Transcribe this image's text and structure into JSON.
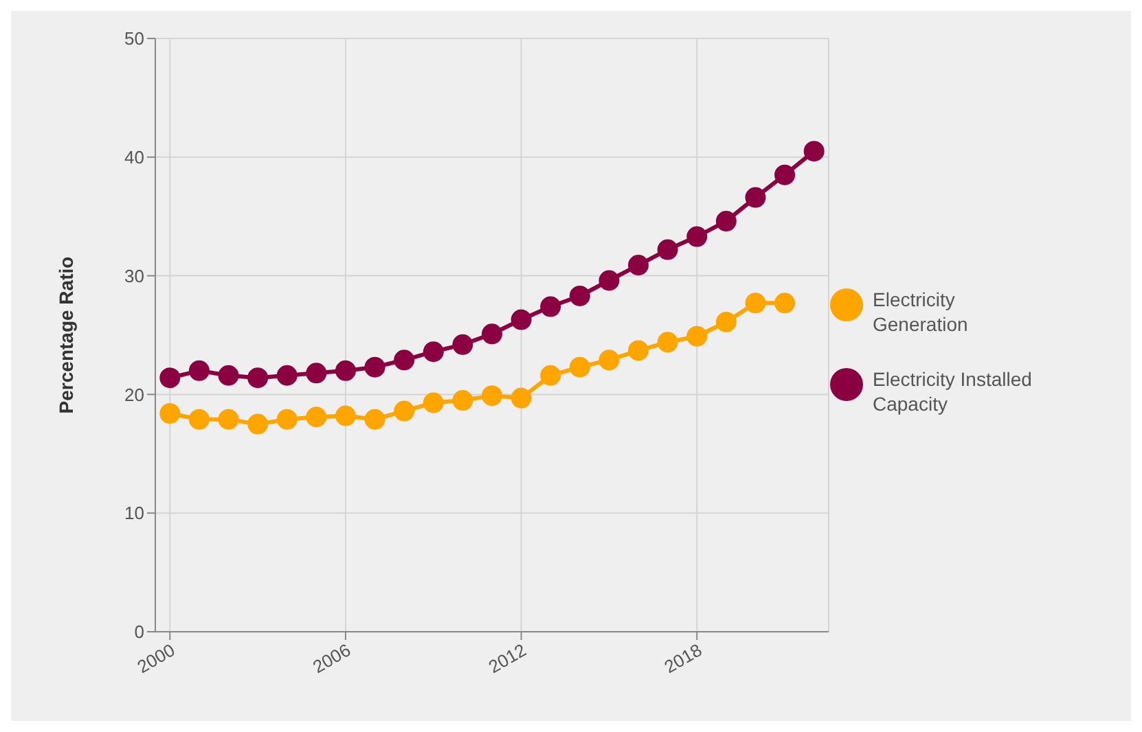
{
  "chart_data": {
    "type": "line",
    "ylabel": "Percentage Ratio",
    "x": [
      2000,
      2001,
      2002,
      2003,
      2004,
      2005,
      2006,
      2007,
      2008,
      2009,
      2010,
      2011,
      2012,
      2013,
      2014,
      2015,
      2016,
      2017,
      2018,
      2019,
      2020,
      2021,
      2022
    ],
    "series": [
      {
        "name": "Electricity Generation",
        "color": "#ffa500",
        "values": [
          18.4,
          17.9,
          17.9,
          17.5,
          17.9,
          18.1,
          18.2,
          17.9,
          18.6,
          19.3,
          19.5,
          19.9,
          19.7,
          21.6,
          22.3,
          22.9,
          23.7,
          24.4,
          24.9,
          26.1,
          27.7,
          27.7,
          null
        ]
      },
      {
        "name": "Electricity Installed Capacity",
        "color": "#8b0040",
        "values": [
          21.4,
          22.0,
          21.6,
          21.4,
          21.6,
          21.8,
          22.0,
          22.3,
          22.9,
          23.6,
          24.2,
          25.1,
          26.3,
          27.4,
          28.3,
          29.6,
          30.9,
          32.2,
          33.3,
          34.6,
          36.6,
          38.5,
          40.5
        ]
      }
    ],
    "xlim": [
      1999.5,
      2022.5
    ],
    "xticks": [
      2000,
      2006,
      2012,
      2018
    ],
    "ylim": [
      0,
      50
    ],
    "yticks": [
      0,
      10,
      20,
      30,
      40,
      50
    ],
    "grid": true,
    "legend": "right",
    "marker": "circle",
    "line_style": "solid"
  }
}
